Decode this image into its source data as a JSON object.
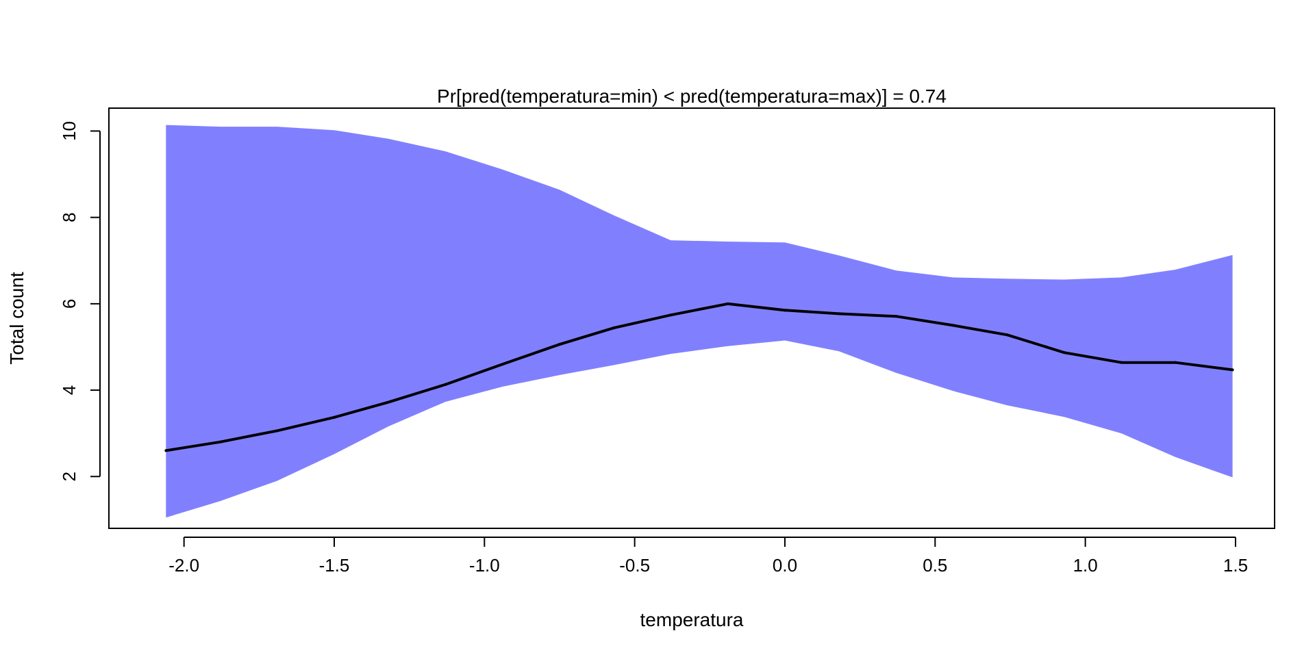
{
  "chart_data": {
    "type": "line",
    "title": "Pr[pred(temperatura=min) < pred(temperatura=max)] = 0.74",
    "xlabel": "temperatura",
    "ylabel": "Total count",
    "xlim": [
      -2.25,
      1.63
    ],
    "ylim": [
      0.8,
      10.53
    ],
    "x_ticks": [
      -2.0,
      -1.5,
      -1.0,
      -0.5,
      0.0,
      0.5,
      1.0,
      1.5
    ],
    "x_tick_labels": [
      "-2.0",
      "-1.5",
      "-1.0",
      "-0.5",
      "0.0",
      "0.5",
      "1.0",
      "1.5"
    ],
    "y_ticks": [
      2,
      4,
      6,
      8,
      10
    ],
    "y_tick_labels": [
      "2",
      "4",
      "6",
      "8",
      "10"
    ],
    "grid": false,
    "legend": "none",
    "band_color": "#8080ff",
    "line_color": "#000000",
    "series": [
      {
        "x": [
          -2.06,
          -1.88,
          -1.69,
          -1.5,
          -1.32,
          -1.13,
          -0.94,
          -0.75,
          -0.57,
          -0.38,
          -0.19,
          0.0,
          0.18,
          0.37,
          0.56,
          0.74,
          0.93,
          1.12,
          1.3,
          1.49
        ],
        "values": [
          2.6,
          2.8,
          3.06,
          3.37,
          3.72,
          4.13,
          4.6,
          5.06,
          5.44,
          5.74,
          6.0,
          5.85,
          5.77,
          5.71,
          5.5,
          5.28,
          4.87,
          4.64,
          4.64,
          4.47
        ],
        "lower": [
          1.05,
          1.43,
          1.9,
          2.52,
          3.16,
          3.73,
          4.08,
          4.35,
          4.58,
          4.84,
          5.02,
          5.15,
          4.9,
          4.4,
          3.98,
          3.65,
          3.38,
          3.0,
          2.45,
          1.98
        ],
        "upper": [
          10.14,
          10.1,
          10.1,
          10.02,
          9.82,
          9.53,
          9.11,
          8.64,
          8.05,
          7.47,
          7.44,
          7.42,
          7.12,
          6.77,
          6.61,
          6.58,
          6.56,
          6.61,
          6.79,
          7.13
        ]
      }
    ]
  }
}
